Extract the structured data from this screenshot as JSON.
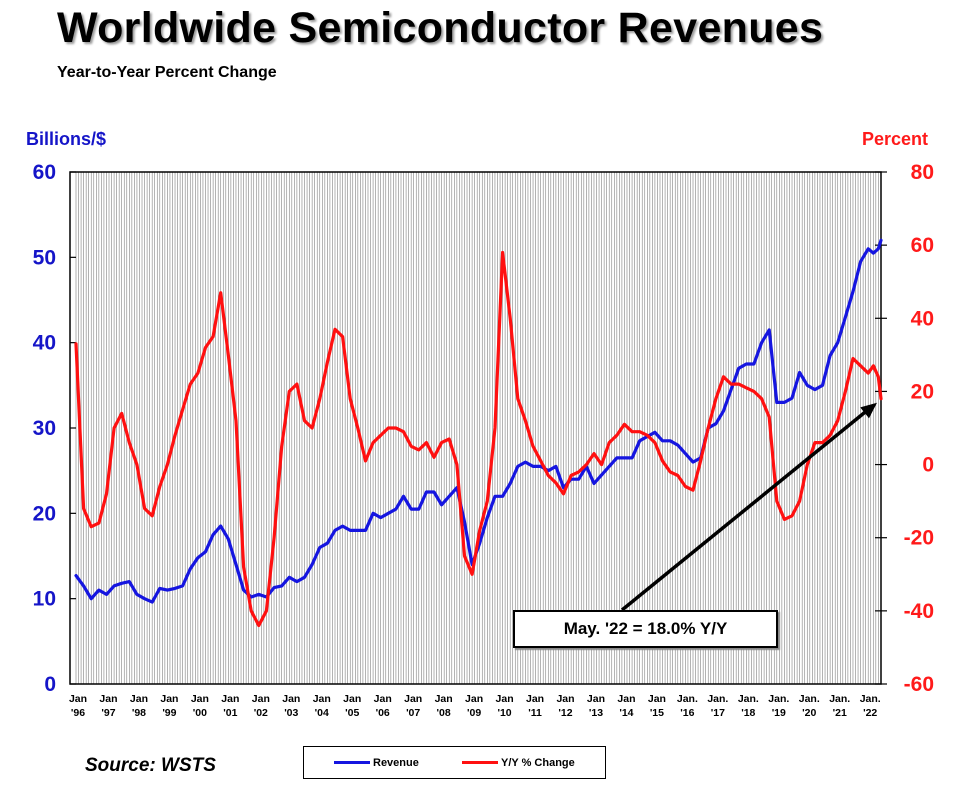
{
  "header": {
    "title": "Worldwide Semiconductor Revenues",
    "subtitle": "Year-to-Year Percent Change"
  },
  "source": "Source: WSTS",
  "callout": "May. '22 = 18.0% Y/Y",
  "colors": {
    "revenue": "#1515e0",
    "yoy": "#ff1010",
    "left_axis": "#1515c8",
    "right_axis": "#ff1a1a",
    "grid": "#808080"
  },
  "chart_data": {
    "type": "line",
    "title": "Worldwide Semiconductor Revenues",
    "subtitle": "Year-to-Year Percent Change",
    "ylabel_left": "Billions/$",
    "ylabel_right": "Percent",
    "ylim_left": [
      0,
      60
    ],
    "ylim_right": [
      -60,
      80
    ],
    "yticks_left": [
      0,
      10,
      20,
      30,
      40,
      50,
      60
    ],
    "yticks_right": [
      -60,
      -40,
      -20,
      0,
      20,
      40,
      60,
      80
    ],
    "xlim": [
      1996.0,
      2022.42
    ],
    "grid": "vertical, monthly",
    "legend_placement": "bottom-center",
    "x_ticks": [
      {
        "x": 1996,
        "l1": "Jan",
        "l2": "'96"
      },
      {
        "x": 1997,
        "l1": "Jan",
        "l2": "'97"
      },
      {
        "x": 1998,
        "l1": "Jan",
        "l2": "'98"
      },
      {
        "x": 1999,
        "l1": "Jan",
        "l2": "'99"
      },
      {
        "x": 2000,
        "l1": "Jan",
        "l2": "'00"
      },
      {
        "x": 2001,
        "l1": "Jan",
        "l2": "'01"
      },
      {
        "x": 2002,
        "l1": "Jan",
        "l2": "'02"
      },
      {
        "x": 2003,
        "l1": "Jan",
        "l2": "'03"
      },
      {
        "x": 2004,
        "l1": "Jan",
        "l2": "'04"
      },
      {
        "x": 2005,
        "l1": "Jan",
        "l2": "'05"
      },
      {
        "x": 2006,
        "l1": "Jan",
        "l2": "'06"
      },
      {
        "x": 2007,
        "l1": "Jan",
        "l2": "'07"
      },
      {
        "x": 2008,
        "l1": "Jan",
        "l2": "'08"
      },
      {
        "x": 2009,
        "l1": "Jan",
        "l2": "'09"
      },
      {
        "x": 2010,
        "l1": "Jan",
        "l2": "'10"
      },
      {
        "x": 2011,
        "l1": "Jan",
        "l2": "'11"
      },
      {
        "x": 2012,
        "l1": "Jan",
        "l2": "'12"
      },
      {
        "x": 2013,
        "l1": "Jan",
        "l2": "'13"
      },
      {
        "x": 2014,
        "l1": "Jan",
        "l2": "'14"
      },
      {
        "x": 2015,
        "l1": "Jan",
        "l2": "'15"
      },
      {
        "x": 2016,
        "l1": "Jan.",
        "l2": "'16"
      },
      {
        "x": 2017,
        "l1": "Jan.",
        "l2": "'17"
      },
      {
        "x": 2018,
        "l1": "Jan.",
        "l2": "'18"
      },
      {
        "x": 2019,
        "l1": "Jan.",
        "l2": "'19"
      },
      {
        "x": 2020,
        "l1": "Jan.",
        "l2": "'20"
      },
      {
        "x": 2021,
        "l1": "Jan.",
        "l2": "'21"
      },
      {
        "x": 2022,
        "l1": "Jan.",
        "l2": "'22"
      }
    ],
    "series": [
      {
        "name": "Revenue",
        "axis": "left",
        "x": [
          1996.0,
          1996.25,
          1996.5,
          1996.75,
          1997.0,
          1997.25,
          1997.5,
          1997.75,
          1998.0,
          1998.25,
          1998.5,
          1998.75,
          1999.0,
          1999.25,
          1999.5,
          1999.75,
          2000.0,
          2000.25,
          2000.5,
          2000.75,
          2001.0,
          2001.25,
          2001.5,
          2001.75,
          2002.0,
          2002.25,
          2002.5,
          2002.75,
          2003.0,
          2003.25,
          2003.5,
          2003.75,
          2004.0,
          2004.25,
          2004.5,
          2004.75,
          2005.0,
          2005.25,
          2005.5,
          2005.75,
          2006.0,
          2006.25,
          2006.5,
          2006.75,
          2007.0,
          2007.25,
          2007.5,
          2007.75,
          2008.0,
          2008.25,
          2008.5,
          2008.75,
          2009.0,
          2009.25,
          2009.5,
          2009.75,
          2010.0,
          2010.25,
          2010.5,
          2010.75,
          2011.0,
          2011.25,
          2011.5,
          2011.75,
          2012.0,
          2012.25,
          2012.5,
          2012.75,
          2013.0,
          2013.25,
          2013.5,
          2013.75,
          2014.0,
          2014.25,
          2014.5,
          2014.75,
          2015.0,
          2015.25,
          2015.5,
          2015.75,
          2016.0,
          2016.25,
          2016.5,
          2016.75,
          2017.0,
          2017.25,
          2017.5,
          2017.75,
          2018.0,
          2018.25,
          2018.5,
          2018.75,
          2019.0,
          2019.25,
          2019.5,
          2019.75,
          2020.0,
          2020.25,
          2020.5,
          2020.75,
          2021.0,
          2021.25,
          2021.5,
          2021.75,
          2022.0,
          2022.17,
          2022.33,
          2022.42
        ],
        "values": [
          12.7,
          11.5,
          10.0,
          11.0,
          10.5,
          11.5,
          11.8,
          12.0,
          10.5,
          10.0,
          9.6,
          11.2,
          11.0,
          11.2,
          11.5,
          13.5,
          14.8,
          15.5,
          17.5,
          18.5,
          17.0,
          14.0,
          11.0,
          10.2,
          10.5,
          10.2,
          11.3,
          11.5,
          12.5,
          12.0,
          12.5,
          14.0,
          16.0,
          16.5,
          18.0,
          18.5,
          18.0,
          18.0,
          18.0,
          20.0,
          19.5,
          20.0,
          20.5,
          22.0,
          20.5,
          20.5,
          22.5,
          22.5,
          21.0,
          22.0,
          23.0,
          19.0,
          14.0,
          16.5,
          19.5,
          22.0,
          22.0,
          23.5,
          25.5,
          26.0,
          25.5,
          25.5,
          25.0,
          25.5,
          23.0,
          24.0,
          24.0,
          25.5,
          23.5,
          24.5,
          25.5,
          26.5,
          26.5,
          26.5,
          28.5,
          29.0,
          29.5,
          28.5,
          28.5,
          28.0,
          27.0,
          26.0,
          26.5,
          30.0,
          30.5,
          32.0,
          34.5,
          37.0,
          37.5,
          37.5,
          40.0,
          41.5,
          33.0,
          33.0,
          33.5,
          36.5,
          35.0,
          34.5,
          35.0,
          38.5,
          40.0,
          43.0,
          46.0,
          49.5,
          51.0,
          50.5,
          51.0,
          52.0
        ]
      },
      {
        "name": "Y/Y % Change",
        "axis": "right",
        "x": [
          1996.0,
          1996.25,
          1996.5,
          1996.75,
          1997.0,
          1997.25,
          1997.5,
          1997.75,
          1998.0,
          1998.25,
          1998.5,
          1998.75,
          1999.0,
          1999.25,
          1999.5,
          1999.75,
          2000.0,
          2000.25,
          2000.5,
          2000.75,
          2001.0,
          2001.25,
          2001.5,
          2001.75,
          2002.0,
          2002.25,
          2002.5,
          2002.75,
          2003.0,
          2003.25,
          2003.5,
          2003.75,
          2004.0,
          2004.25,
          2004.5,
          2004.75,
          2005.0,
          2005.25,
          2005.5,
          2005.75,
          2006.0,
          2006.25,
          2006.5,
          2006.75,
          2007.0,
          2007.25,
          2007.5,
          2007.75,
          2008.0,
          2008.25,
          2008.5,
          2008.75,
          2009.0,
          2009.25,
          2009.5,
          2009.75,
          2010.0,
          2010.25,
          2010.5,
          2010.75,
          2011.0,
          2011.25,
          2011.5,
          2011.75,
          2012.0,
          2012.25,
          2012.5,
          2012.75,
          2013.0,
          2013.25,
          2013.5,
          2013.75,
          2014.0,
          2014.25,
          2014.5,
          2014.75,
          2015.0,
          2015.25,
          2015.5,
          2015.75,
          2016.0,
          2016.25,
          2016.5,
          2016.75,
          2017.0,
          2017.25,
          2017.5,
          2017.75,
          2018.0,
          2018.25,
          2018.5,
          2018.75,
          2019.0,
          2019.25,
          2019.5,
          2019.75,
          2020.0,
          2020.25,
          2020.5,
          2020.75,
          2021.0,
          2021.25,
          2021.5,
          2021.75,
          2022.0,
          2022.17,
          2022.33,
          2022.42
        ],
        "values": [
          33.0,
          -12.0,
          -17.0,
          -16.0,
          -8.0,
          10.0,
          14.0,
          6.0,
          0.0,
          -12.0,
          -14.0,
          -6.0,
          0.0,
          8.0,
          15.0,
          22.0,
          25.0,
          32.0,
          35.0,
          47.0,
          30.0,
          12.0,
          -28.0,
          -40.0,
          -44.0,
          -40.0,
          -20.0,
          5.0,
          20.0,
          22.0,
          12.0,
          10.0,
          18.0,
          28.0,
          37.0,
          35.0,
          18.0,
          10.0,
          1.0,
          6.0,
          8.0,
          10.0,
          10.0,
          9.0,
          5.0,
          4.0,
          6.0,
          2.0,
          6.0,
          7.0,
          0.0,
          -25.0,
          -30.0,
          -18.0,
          -10.0,
          10.0,
          58.0,
          40.0,
          18.0,
          12.0,
          5.0,
          1.0,
          -3.0,
          -5.0,
          -8.0,
          -3.0,
          -2.0,
          0.0,
          3.0,
          0.0,
          6.0,
          8.0,
          11.0,
          9.0,
          9.0,
          8.0,
          6.0,
          1.0,
          -2.0,
          -3.0,
          -6.0,
          -7.0,
          1.0,
          10.0,
          18.0,
          24.0,
          22.0,
          22.0,
          21.0,
          20.0,
          18.0,
          13.0,
          -10.0,
          -15.0,
          -14.0,
          -10.0,
          0.0,
          6.0,
          6.0,
          8.0,
          12.0,
          20.0,
          29.0,
          27.0,
          25.0,
          27.0,
          24.0,
          18.0
        ]
      }
    ]
  },
  "legend": [
    {
      "label": "Revenue"
    },
    {
      "label": "Y/Y % Change"
    }
  ]
}
